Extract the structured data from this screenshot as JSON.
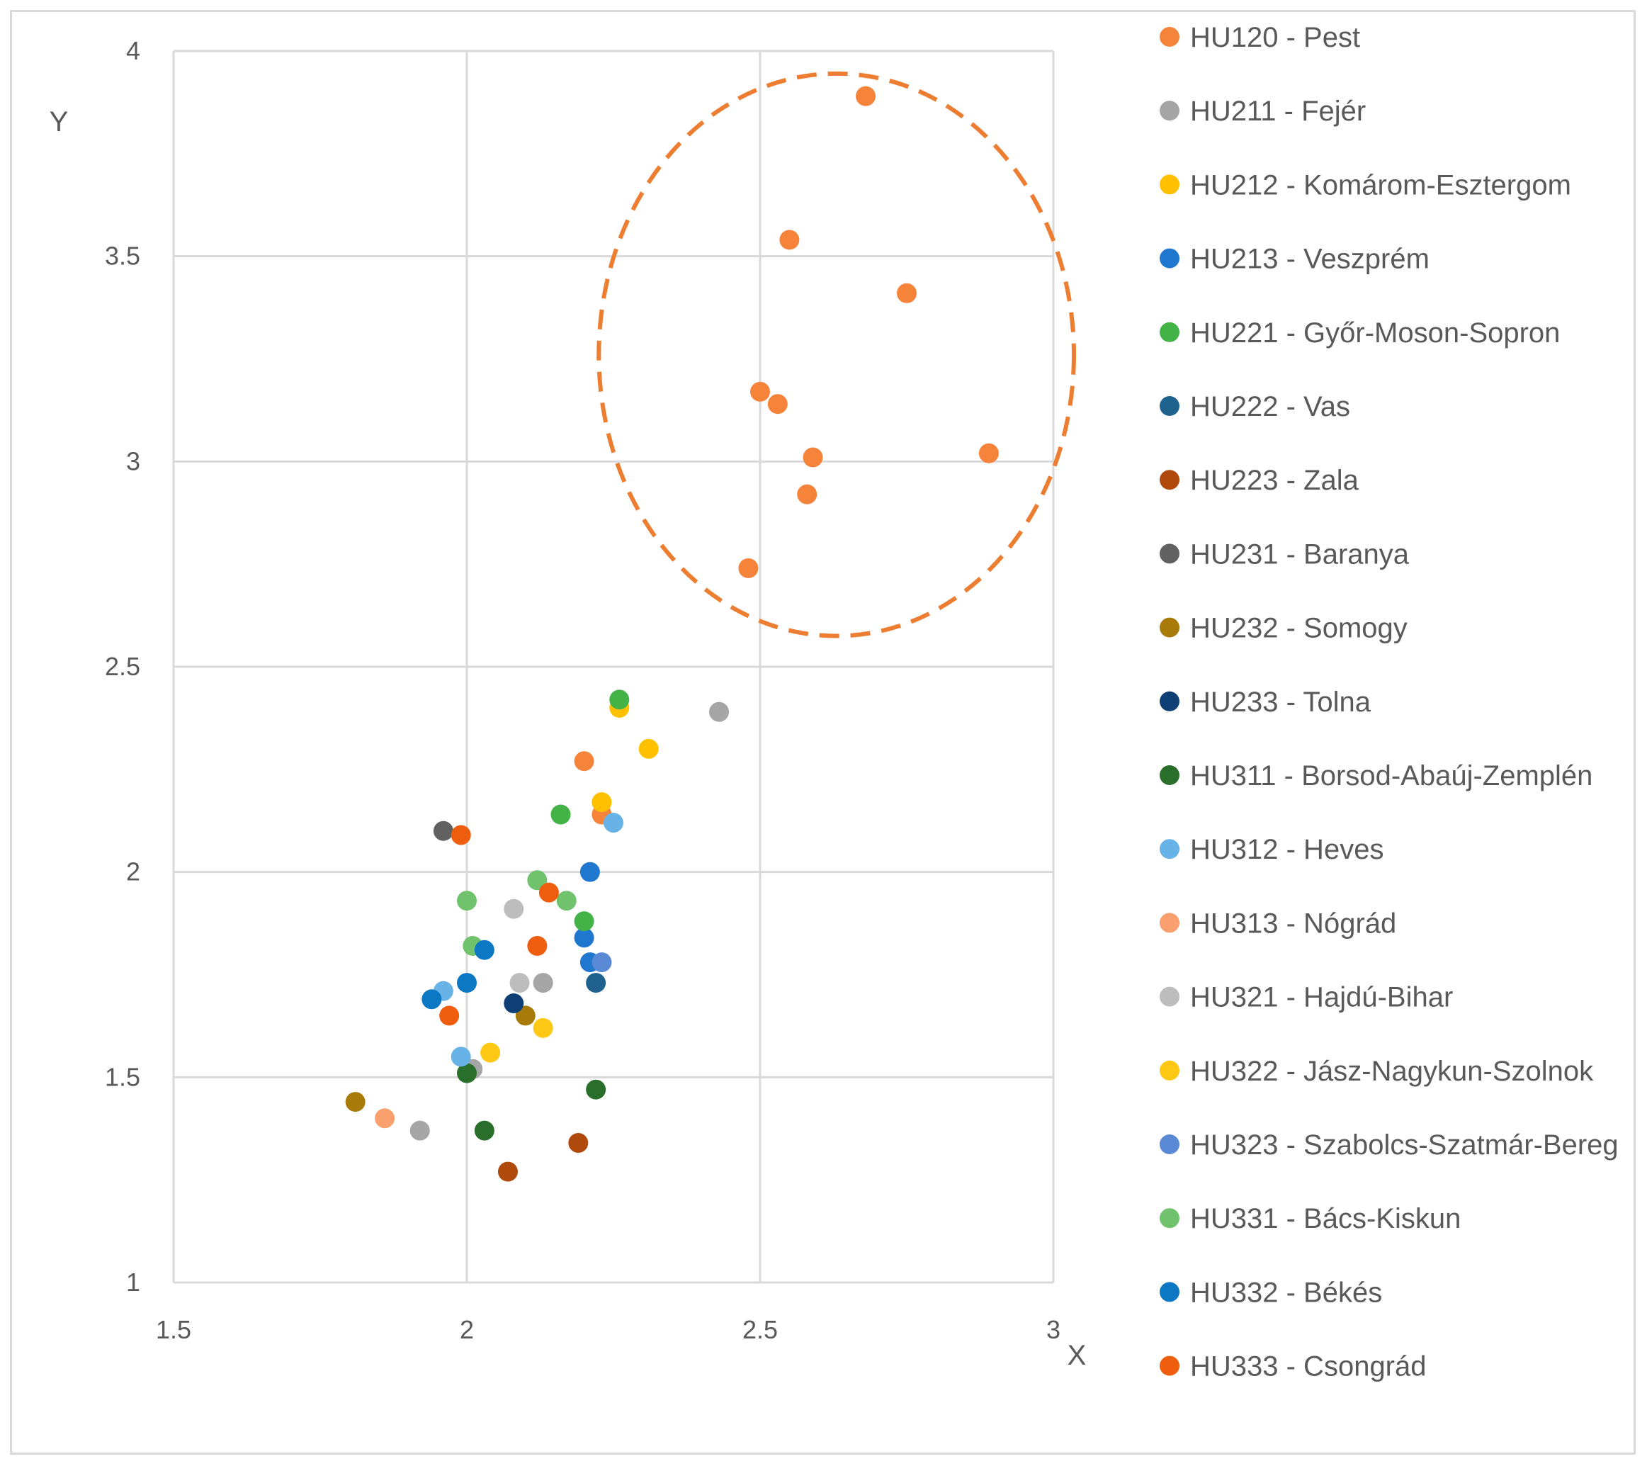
{
  "chart_data": {
    "type": "scatter",
    "title": "",
    "xlabel": "X",
    "ylabel": "Y",
    "xlim": [
      1.5,
      3
    ],
    "ylim": [
      1,
      4
    ],
    "xticks": [
      "1.5",
      "2",
      "2.5",
      "3"
    ],
    "yticks": [
      "1",
      "1.5",
      "2",
      "2.5",
      "3",
      "3.5",
      "4"
    ],
    "grid": true,
    "legend_position": "right",
    "highlight_ellipse": {
      "cx": 2.63,
      "cy": 3.26,
      "rx": 0.405,
      "ry": 0.685,
      "color": "#ED7D31",
      "style": "dashed"
    },
    "series": [
      {
        "name": "HU120 - Pest",
        "color": "#F5843A",
        "points": [
          [
            2.68,
            3.89
          ],
          [
            2.55,
            3.54
          ],
          [
            2.75,
            3.41
          ],
          [
            2.5,
            3.17
          ],
          [
            2.53,
            3.14
          ],
          [
            2.59,
            3.01
          ],
          [
            2.89,
            3.02
          ],
          [
            2.58,
            2.92
          ],
          [
            2.48,
            2.74
          ],
          [
            2.2,
            2.27
          ],
          [
            2.23,
            2.14
          ]
        ]
      },
      {
        "name": "HU211 - Fejér",
        "color": "#A5A5A5",
        "points": [
          [
            2.43,
            2.39
          ],
          [
            2.13,
            1.73
          ],
          [
            2.01,
            1.52
          ],
          [
            1.92,
            1.37
          ]
        ]
      },
      {
        "name": "HU212 - Komárom-Esztergom",
        "color": "#FFC000",
        "points": [
          [
            2.26,
            2.4
          ],
          [
            2.31,
            2.3
          ],
          [
            2.23,
            2.17
          ]
        ]
      },
      {
        "name": "HU213 - Veszprém",
        "color": "#1F77D0",
        "points": [
          [
            2.21,
            2.0
          ],
          [
            2.2,
            1.84
          ],
          [
            2.21,
            1.78
          ]
        ]
      },
      {
        "name": "HU221 - Győr-Moson-Sopron",
        "color": "#44B347",
        "points": [
          [
            2.26,
            2.42
          ],
          [
            2.16,
            2.14
          ],
          [
            2.2,
            1.88
          ]
        ]
      },
      {
        "name": "HU222 - Vas",
        "color": "#1F628E",
        "points": [
          [
            2.22,
            1.73
          ]
        ]
      },
      {
        "name": "HU223 - Zala",
        "color": "#B04A0C",
        "points": [
          [
            2.19,
            1.34
          ],
          [
            2.07,
            1.27
          ]
        ]
      },
      {
        "name": "HU231 - Baranya",
        "color": "#616161",
        "points": [
          [
            1.96,
            2.1
          ]
        ]
      },
      {
        "name": "HU232 - Somogy",
        "color": "#A87A0A",
        "points": [
          [
            1.81,
            1.44
          ],
          [
            2.1,
            1.65
          ]
        ]
      },
      {
        "name": "HU233 - Tolna",
        "color": "#0D3F75",
        "points": [
          [
            2.08,
            1.68
          ]
        ]
      },
      {
        "name": "HU311 - Borsod-Abaúj-Zemplén",
        "color": "#2A6E2C",
        "points": [
          [
            2.22,
            1.47
          ],
          [
            2.0,
            1.51
          ],
          [
            2.03,
            1.37
          ]
        ]
      },
      {
        "name": "HU312 - Heves",
        "color": "#67B2E6",
        "points": [
          [
            2.25,
            2.12
          ],
          [
            1.96,
            1.71
          ],
          [
            1.99,
            1.55
          ]
        ]
      },
      {
        "name": "HU313 - Nógrád",
        "color": "#F9A06E",
        "points": [
          [
            1.86,
            1.4
          ]
        ]
      },
      {
        "name": "HU321 - Hajdú-Bihar",
        "color": "#BDBDBD",
        "points": [
          [
            2.08,
            1.91
          ],
          [
            2.09,
            1.73
          ]
        ]
      },
      {
        "name": "HU322 - Jász-Nagykun-Szolnok",
        "color": "#FFC815",
        "points": [
          [
            2.13,
            1.62
          ],
          [
            2.04,
            1.56
          ]
        ]
      },
      {
        "name": "HU323 - Szabolcs-Szatmár-Bereg",
        "color": "#5A8AD6",
        "points": [
          [
            2.23,
            1.78
          ]
        ]
      },
      {
        "name": "HU331 - Bács-Kiskun",
        "color": "#70C26C",
        "points": [
          [
            2.12,
            1.98
          ],
          [
            2.17,
            1.93
          ],
          [
            2.0,
            1.93
          ],
          [
            2.01,
            1.82
          ]
        ]
      },
      {
        "name": "HU332 - Békés",
        "color": "#0C78C3",
        "points": [
          [
            2.03,
            1.81
          ],
          [
            2.0,
            1.73
          ],
          [
            1.94,
            1.69
          ]
        ]
      },
      {
        "name": "HU333 - Csongrád",
        "color": "#EE5E0E",
        "points": [
          [
            1.99,
            2.09
          ],
          [
            2.14,
            1.95
          ],
          [
            2.12,
            1.82
          ],
          [
            1.97,
            1.65
          ]
        ]
      }
    ]
  }
}
